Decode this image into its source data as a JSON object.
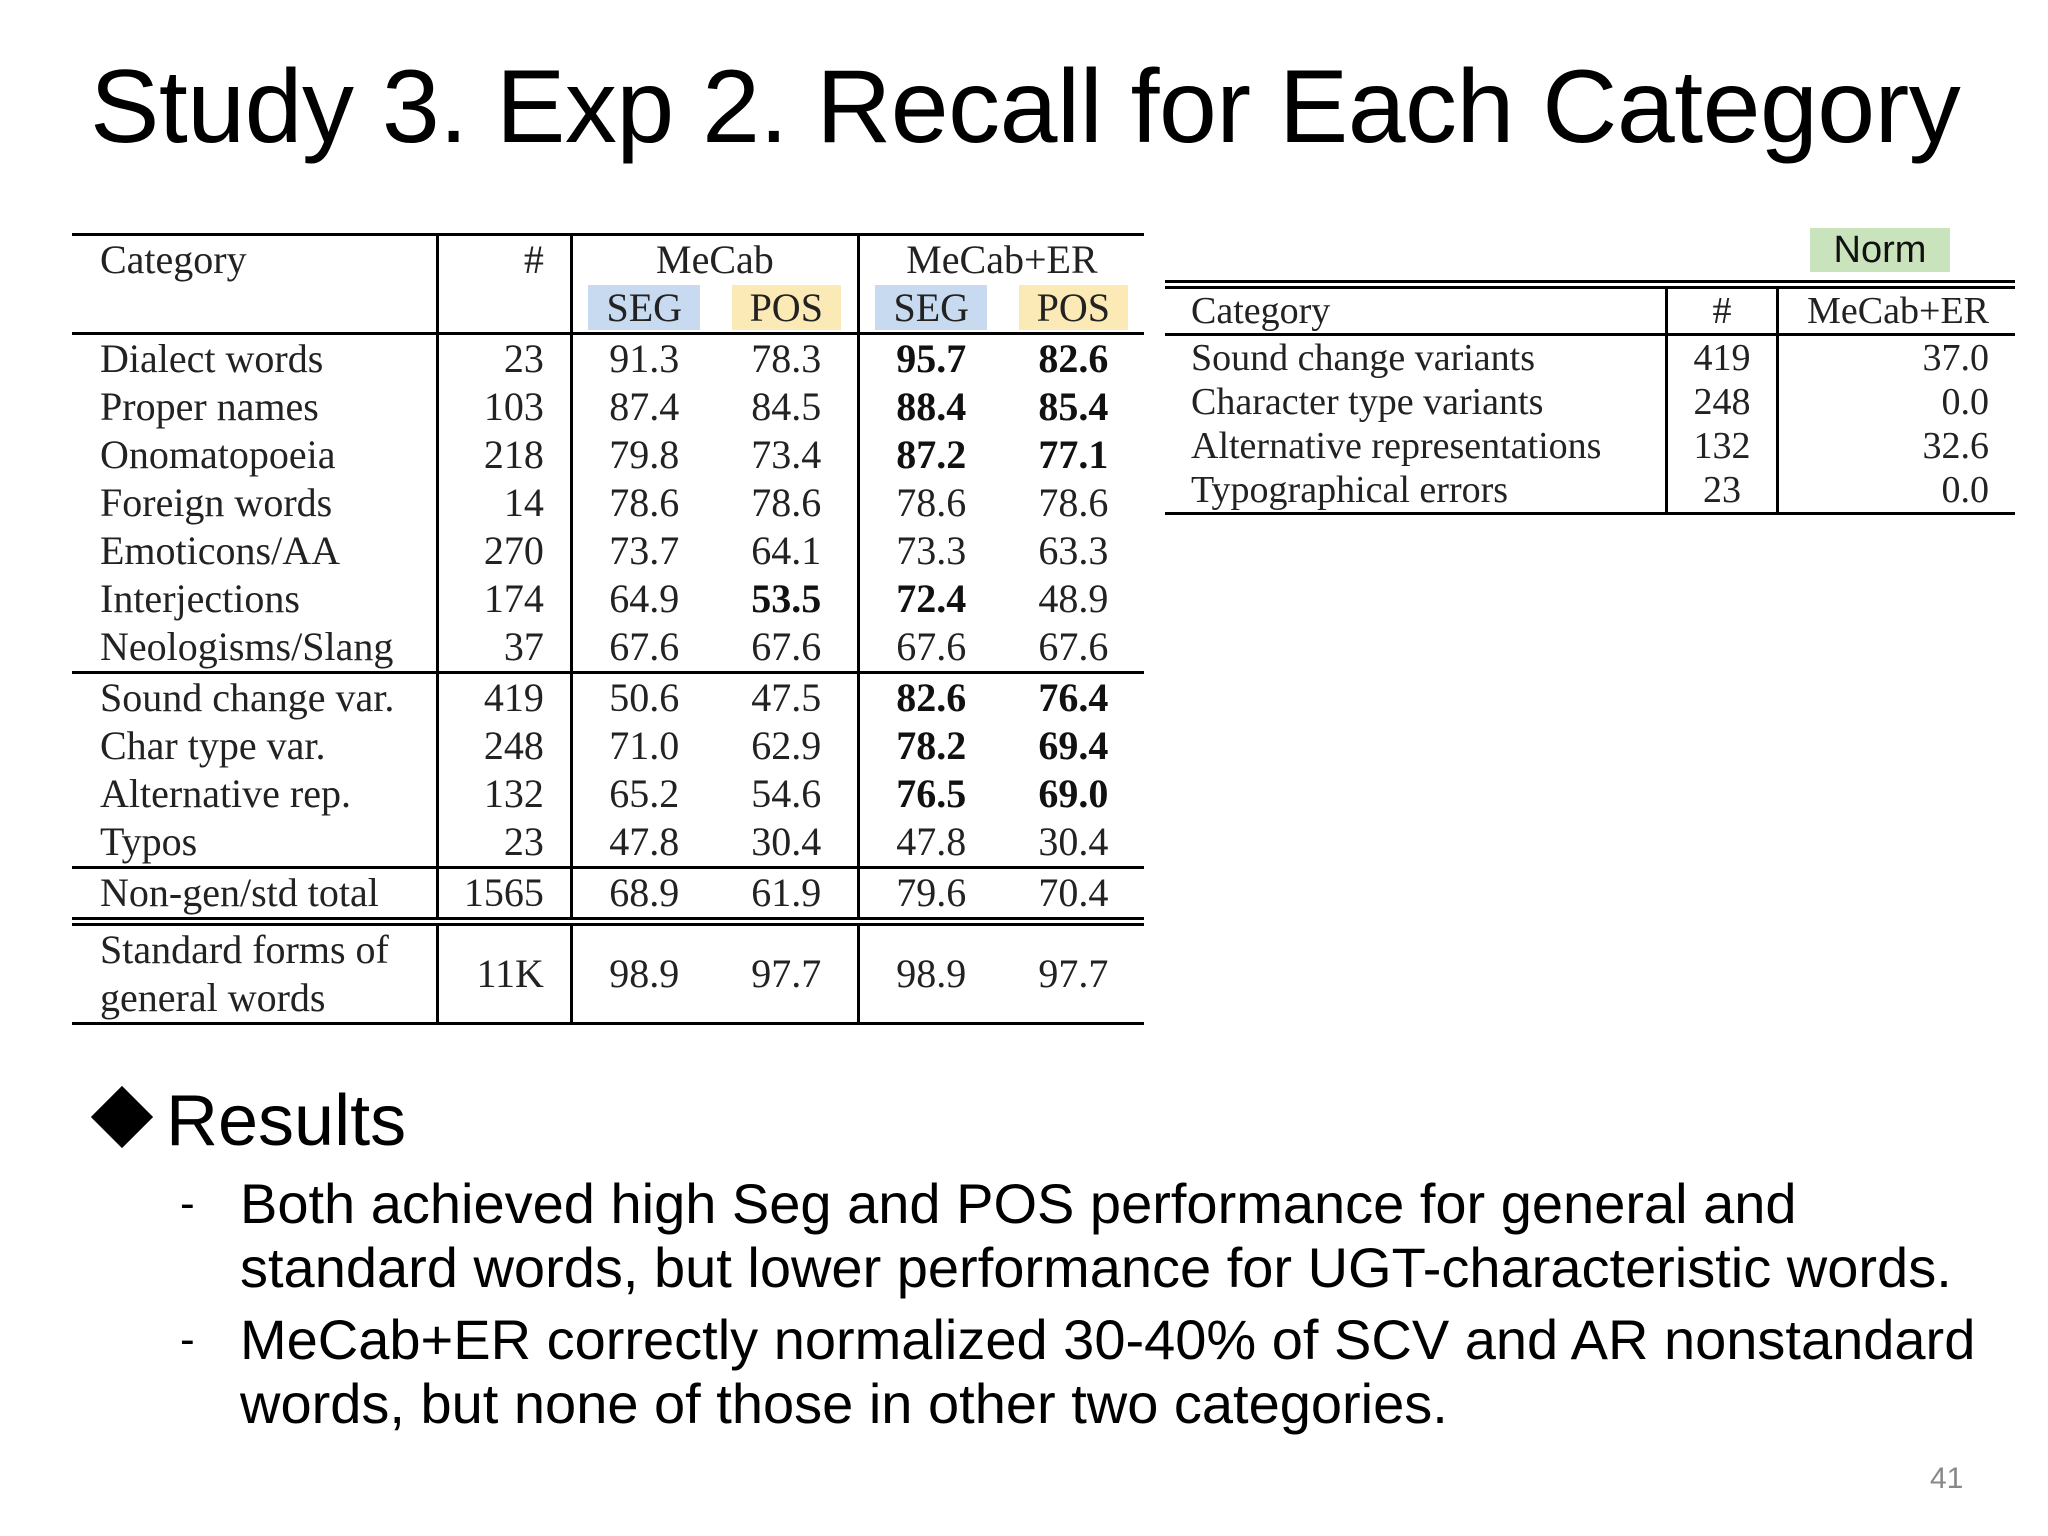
{
  "title": "Study 3. Exp 2. Recall for Each Category",
  "main_table": {
    "header": {
      "category": "Category",
      "count": "#",
      "group1": "MeCab",
      "group2": "MeCab+ER",
      "seg": "SEG",
      "pos": "POS"
    },
    "rows": [
      {
        "category": "Dialect words",
        "count": "23",
        "mecab_seg": "91.3",
        "mecab_pos": "78.3",
        "er_seg": "95.7",
        "er_pos": "82.6"
      },
      {
        "category": "Proper names",
        "count": "103",
        "mecab_seg": "87.4",
        "mecab_pos": "84.5",
        "er_seg": "88.4",
        "er_pos": "85.4"
      },
      {
        "category": "Onomatopoeia",
        "count": "218",
        "mecab_seg": "79.8",
        "mecab_pos": "73.4",
        "er_seg": "87.2",
        "er_pos": "77.1"
      },
      {
        "category": "Foreign words",
        "count": "14",
        "mecab_seg": "78.6",
        "mecab_pos": "78.6",
        "er_seg": "78.6",
        "er_pos": "78.6"
      },
      {
        "category": "Emoticons/AA",
        "count": "270",
        "mecab_seg": "73.7",
        "mecab_pos": "64.1",
        "er_seg": "73.3",
        "er_pos": "63.3"
      },
      {
        "category": "Interjections",
        "count": "174",
        "mecab_seg": "64.9",
        "mecab_pos": "53.5",
        "er_seg": "72.4",
        "er_pos": "48.9"
      },
      {
        "category": "Neologisms/Slang",
        "count": "37",
        "mecab_seg": "67.6",
        "mecab_pos": "67.6",
        "er_seg": "67.6",
        "er_pos": "67.6"
      },
      {
        "category": "Sound change var.",
        "count": "419",
        "mecab_seg": "50.6",
        "mecab_pos": "47.5",
        "er_seg": "82.6",
        "er_pos": "76.4"
      },
      {
        "category": "Char type var.",
        "count": "248",
        "mecab_seg": "71.0",
        "mecab_pos": "62.9",
        "er_seg": "78.2",
        "er_pos": "69.4"
      },
      {
        "category": "Alternative rep.",
        "count": "132",
        "mecab_seg": "65.2",
        "mecab_pos": "54.6",
        "er_seg": "76.5",
        "er_pos": "69.0"
      },
      {
        "category": "Typos",
        "count": "23",
        "mecab_seg": "47.8",
        "mecab_pos": "30.4",
        "er_seg": "47.8",
        "er_pos": "30.4"
      },
      {
        "category": "Non-gen/std total",
        "count": "1565",
        "mecab_seg": "68.9",
        "mecab_pos": "61.9",
        "er_seg": "79.6",
        "er_pos": "70.4"
      },
      {
        "category_line1": "Standard forms of",
        "category_line2": "general words",
        "count": "11K",
        "mecab_seg": "98.9",
        "mecab_pos": "97.7",
        "er_seg": "98.9",
        "er_pos": "97.7"
      }
    ],
    "seg_color": "#c7daf0",
    "pos_color": "#fbeab6"
  },
  "norm_table": {
    "badge": "Norm",
    "badge_color": "#c9e4bd",
    "header": {
      "category": "Category",
      "count": "#",
      "value": "MeCab+ER"
    },
    "rows": [
      {
        "category": "Sound change variants",
        "count": "419",
        "value": "37.0"
      },
      {
        "category": "Character type variants",
        "count": "248",
        "value": "0.0"
      },
      {
        "category": "Alternative representations",
        "count": "132",
        "value": "32.6"
      },
      {
        "category": "Typographical errors",
        "count": "23",
        "value": "0.0"
      }
    ]
  },
  "results": {
    "heading": "Results",
    "dash": "-",
    "bullets": [
      "Both achieved high Seg and POS performance for general and standard words, but lower performance for UGT-characteristic words.",
      "MeCab+ER correctly normalized 30-40% of SCV and AR nonstandard words, but none of those in other two categories."
    ]
  },
  "page_number": "41"
}
